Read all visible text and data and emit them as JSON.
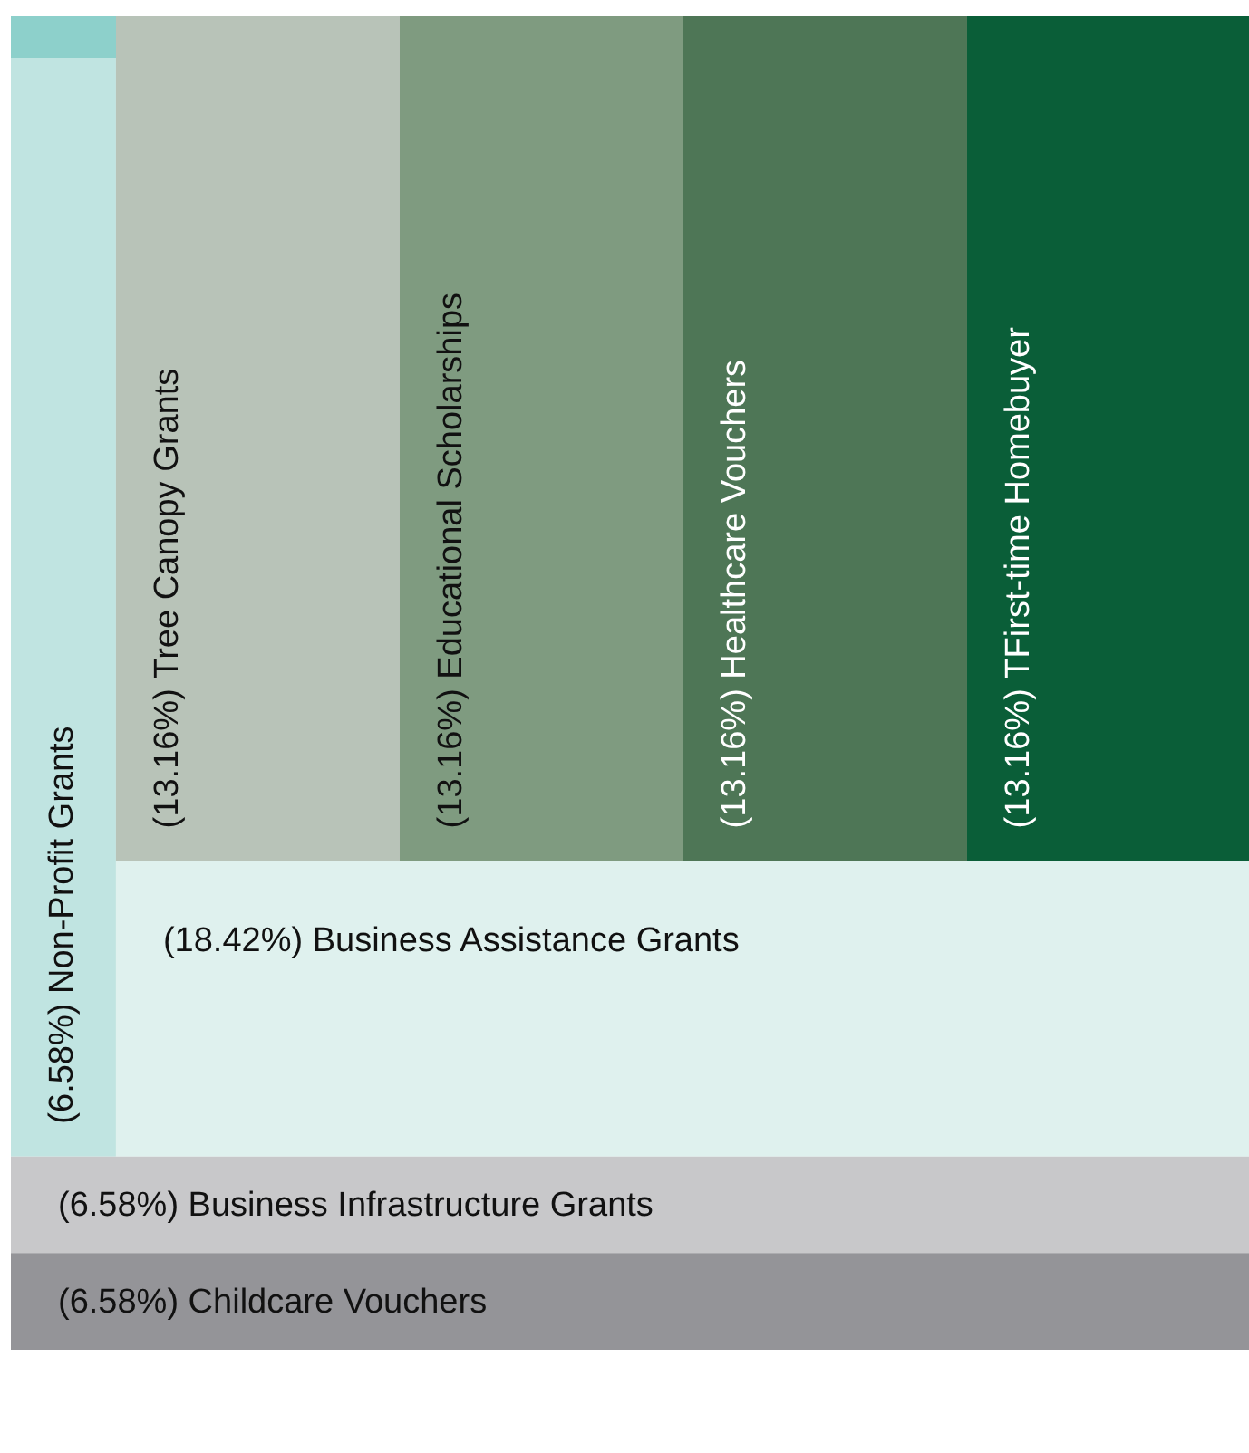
{
  "chart_data": {
    "type": "other",
    "categories": [
      "Non-Profit Grants",
      "Tree Canopy Grants",
      "Educational Scholarships",
      "Healthcare Vouchers",
      "TFirst-time Homebuyer",
      "Business Assistance Grants",
      "Business Infrastructure Grants",
      "Childcare Vouchers"
    ],
    "value_labels": [
      "(6.58%)",
      "(13.16%)",
      "(13.16%)",
      "(13.16%)",
      "(13.16%)",
      "(18.42%)",
      "(6.58%)",
      "(6.58%)"
    ],
    "values": [
      6.58,
      13.16,
      13.16,
      13.16,
      13.16,
      18.42,
      6.58,
      6.58
    ],
    "colors": [
      "#c0e4e1",
      "#b8c3b8",
      "#7f9b80",
      "#4e7656",
      "#0a5e38",
      "#dff1ee",
      "#c8c8ca",
      "#949498"
    ]
  }
}
